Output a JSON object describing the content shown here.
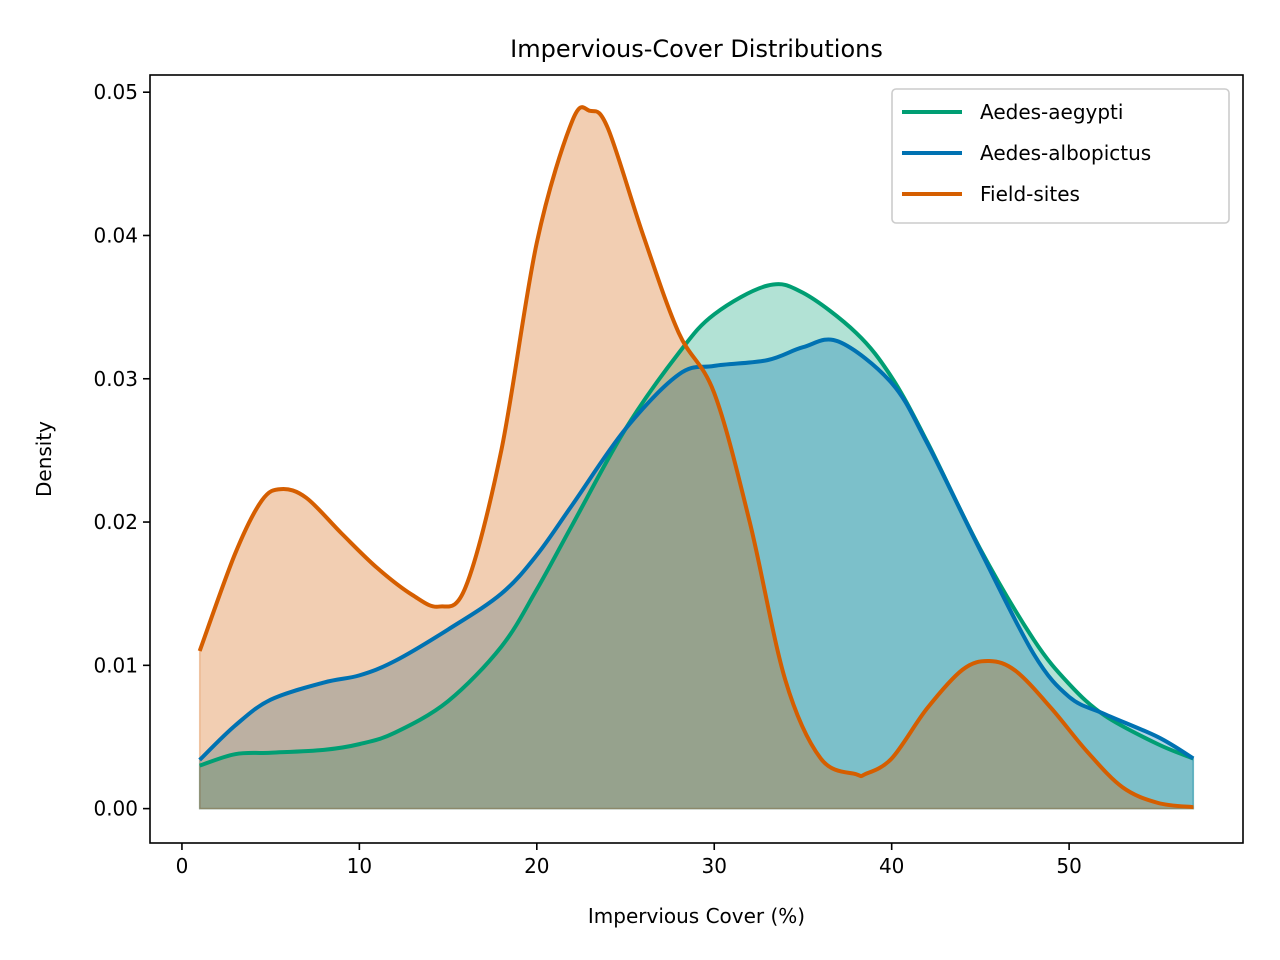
{
  "chart_data": {
    "type": "area",
    "title": "Impervious-Cover Distributions",
    "xlabel": "Impervious Cover (%)",
    "ylabel": "Density",
    "xlim": [
      -1.8,
      59.8
    ],
    "ylim": [
      -0.0024,
      0.0512
    ],
    "xticks": [
      0,
      10,
      20,
      30,
      40,
      50
    ],
    "yticks": [
      0.0,
      0.01,
      0.02,
      0.03,
      0.04,
      0.05
    ],
    "ytick_labels": [
      "0.00",
      "0.01",
      "0.02",
      "0.03",
      "0.04",
      "0.05"
    ],
    "grid": false,
    "legend_position": "upper right",
    "series": [
      {
        "name": "Aedes-aegypti",
        "color": "#009E73",
        "x": [
          1,
          3,
          5,
          8,
          10,
          12,
          15,
          18,
          20,
          22,
          25,
          28,
          30,
          33,
          35,
          38,
          40,
          42,
          45,
          48,
          50,
          52,
          55,
          57
        ],
        "y": [
          0.003,
          0.0038,
          0.0039,
          0.0041,
          0.0045,
          0.0053,
          0.0075,
          0.0113,
          0.0153,
          0.0198,
          0.0265,
          0.0318,
          0.0345,
          0.0365,
          0.036,
          0.0332,
          0.0301,
          0.0256,
          0.0181,
          0.0118,
          0.0087,
          0.0065,
          0.0045,
          0.0035
        ]
      },
      {
        "name": "Aedes-albopictus",
        "color": "#0072B2",
        "x": [
          1,
          3,
          5,
          8,
          10,
          12,
          15,
          18,
          20,
          22,
          25,
          28,
          30,
          33,
          35,
          37,
          40,
          42,
          45,
          48,
          50,
          52,
          55,
          57
        ],
        "y": [
          0.0034,
          0.0058,
          0.0076,
          0.0088,
          0.0093,
          0.0103,
          0.0125,
          0.015,
          0.0177,
          0.0212,
          0.0265,
          0.0303,
          0.0309,
          0.0313,
          0.0322,
          0.0326,
          0.0297,
          0.0255,
          0.018,
          0.0108,
          0.0078,
          0.0066,
          0.005,
          0.0035
        ]
      },
      {
        "name": "Field-sites",
        "color": "#D55E00",
        "x": [
          1,
          3,
          4.5,
          5.6,
          7,
          9,
          11,
          13,
          14.5,
          16,
          18,
          20,
          22,
          23,
          24,
          26,
          28,
          30,
          32,
          34,
          36,
          38,
          38.5,
          40,
          42,
          44,
          45.5,
          47,
          49,
          51,
          53,
          55,
          57
        ],
        "y": [
          0.011,
          0.0178,
          0.0215,
          0.0223,
          0.0217,
          0.0192,
          0.0168,
          0.0149,
          0.0141,
          0.0155,
          0.025,
          0.0395,
          0.048,
          0.0487,
          0.0475,
          0.04,
          0.0332,
          0.029,
          0.02,
          0.009,
          0.0035,
          0.0024,
          0.0024,
          0.0035,
          0.007,
          0.0097,
          0.0103,
          0.0096,
          0.007,
          0.004,
          0.0015,
          0.0004,
          0.0001
        ]
      }
    ]
  }
}
